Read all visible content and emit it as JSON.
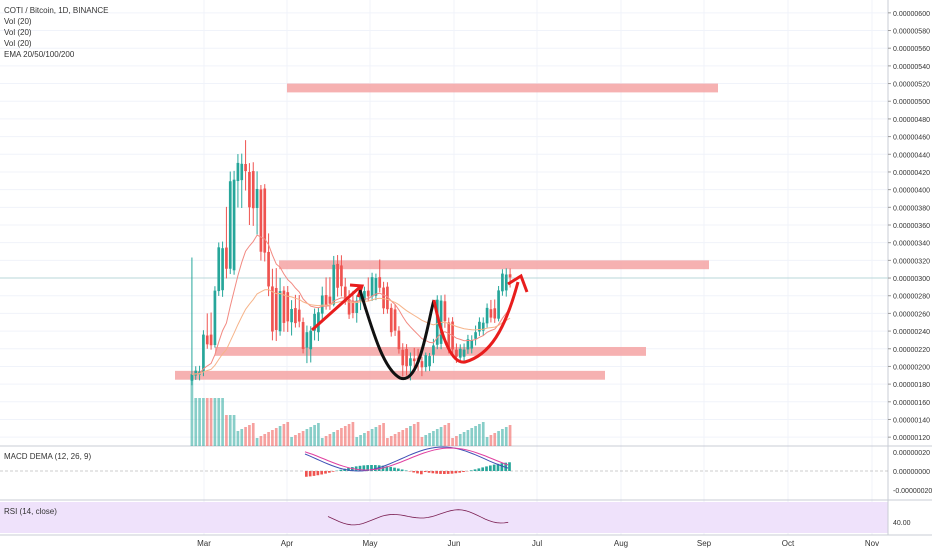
{
  "header": {
    "symbol": "COTI / Bitcoin, 1D, BINANCE",
    "indicators": [
      "Vol (20)",
      "Vol (20)",
      "Vol (20)",
      "EMA 20/50/100/200"
    ]
  },
  "macd": {
    "label": "MACD DEMA (12, 26, 9)",
    "ticks": [
      "0.00000020",
      "0.00000000",
      "-0.00000020"
    ]
  },
  "rsi": {
    "label": "RSI (14, close)",
    "ticks": [
      "40.00"
    ]
  },
  "colors": {
    "bull": "#26a69a",
    "bear": "#ef5350",
    "zone": "#f5a3a3",
    "rsi_bg": "#efe2fb",
    "macd_line": "#3f51b5",
    "signal_line": "#e040a0",
    "ema_fast": "#f28a82",
    "ema_slow": "#f6b48a",
    "ema_cyan": "#7fd3e6",
    "pattern_black": "#111111",
    "pattern_red": "#e81d1d",
    "price_line": "#b9d7da"
  },
  "chart_data": {
    "type": "candlestick",
    "title": "COTI / Bitcoin, 1D, BINANCE",
    "x_axis": {
      "ticks": [
        "Mar",
        "Apr",
        "May",
        "Jun",
        "Jul",
        "Aug",
        "Sep",
        "Oct",
        "Nov"
      ]
    },
    "y_axis": {
      "range": [
        1.1e-06,
        6.1e-06
      ],
      "ticks": [
        "0.00000600",
        "0.00000580",
        "0.00000560",
        "0.00000540",
        "0.00000520",
        "0.00000500",
        "0.00000480",
        "0.00000460",
        "0.00000440",
        "0.00000420",
        "0.00000400",
        "0.00000380",
        "0.00000360",
        "0.00000340",
        "0.00000320",
        "0.00000300",
        "0.00000280",
        "0.00000260",
        "0.00000240",
        "0.00000220",
        "0.00000200",
        "0.00000180",
        "0.00000160",
        "0.00000140",
        "0.00000120"
      ]
    },
    "current_price": 3e-06,
    "resistance_zones": [
      {
        "from": "Apr",
        "to": "Sep",
        "low": 5.1e-06,
        "high": 5.2e-06
      },
      {
        "from": "Apr",
        "to": "Sep",
        "low": 3.1e-06,
        "high": 3.2e-06
      },
      {
        "from": "Mar",
        "to": "Aug",
        "low": 2.12e-06,
        "high": 2.22e-06
      },
      {
        "from": "Feb",
        "to": "Aug",
        "low": 1.85e-06,
        "high": 1.95e-06
      }
    ],
    "candles_approx": [
      [
        1.85e-06,
        3.22e-06,
        1.8e-06,
        1.9e-06
      ],
      [
        1.9e-06,
        2e-06,
        1.85e-06,
        1.95e-06
      ],
      [
        1.95e-06,
        2.4e-06,
        1.9e-06,
        2.35e-06
      ],
      [
        2.35e-06,
        2.6e-06,
        2.2e-06,
        2.25e-06
      ],
      [
        2.25e-06,
        2.9e-06,
        2.22e-06,
        2.85e-06
      ],
      [
        2.85e-06,
        3.4e-06,
        2.8e-06,
        3.35e-06
      ],
      [
        3.35e-06,
        3.8e-06,
        3e-06,
        3.1e-06
      ],
      [
        3.1e-06,
        4.2e-06,
        3.05e-06,
        4.1e-06
      ],
      [
        4.1e-06,
        4.4e-06,
        3.8e-06,
        4.3e-06
      ],
      [
        4.3e-06,
        4.55e-06,
        4e-06,
        4.2e-06
      ],
      [
        4.2e-06,
        4.3e-06,
        3.6e-06,
        3.8e-06
      ],
      [
        3.8e-06,
        4.2e-06,
        3.5e-06,
        4e-06
      ],
      [
        4e-06,
        4.05e-06,
        3.2e-06,
        3.3e-06
      ],
      [
        3.3e-06,
        3.5e-06,
        2.8e-06,
        2.9e-06
      ],
      [
        2.9e-06,
        3.1e-06,
        2.3e-06,
        2.4e-06
      ],
      [
        2.4e-06,
        3e-06,
        2.35e-06,
        2.85e-06
      ],
      [
        2.85e-06,
        2.9e-06,
        2.4e-06,
        2.5e-06
      ],
      [
        2.5e-06,
        2.75e-06,
        2.35e-06,
        2.65e-06
      ],
      [
        2.65e-06,
        2.8e-06,
        2.45e-06,
        2.5e-06
      ],
      [
        2.5e-06,
        2.55e-06,
        2.15e-06,
        2.2e-06
      ],
      [
        2.2e-06,
        2.45e-06,
        2.05e-06,
        2.4e-06
      ],
      [
        2.4e-06,
        2.65e-06,
        2.3e-06,
        2.6e-06
      ],
      [
        2.6e-06,
        2.9e-06,
        2.5e-06,
        2.8e-06
      ],
      [
        2.8e-06,
        3e-06,
        2.65e-06,
        2.7e-06
      ],
      [
        2.7e-06,
        3.25e-06,
        2.68e-06,
        3.15e-06
      ],
      [
        3.15e-06,
        3.25e-06,
        2.8e-06,
        2.9e-06
      ],
      [
        2.9e-06,
        3e-06,
        2.7e-06,
        2.75e-06
      ],
      [
        2.75e-06,
        2.85e-06,
        2.55e-06,
        2.6e-06
      ],
      [
        2.6e-06,
        2.8e-06,
        2.5e-06,
        2.75e-06
      ],
      [
        2.75e-06,
        2.9e-06,
        2.65e-06,
        2.85e-06
      ],
      [
        2.85e-06,
        3e-06,
        2.75e-06,
        2.8e-06
      ],
      [
        2.8e-06,
        3.05e-06,
        2.75e-06,
        3e-06
      ],
      [
        3e-06,
        3.2e-06,
        2.85e-06,
        2.9e-06
      ],
      [
        2.9e-06,
        2.95e-06,
        2.6e-06,
        2.65e-06
      ],
      [
        2.65e-06,
        2.7e-06,
        2.35e-06,
        2.4e-06
      ],
      [
        2.4e-06,
        2.45e-06,
        2.15e-06,
        2.2e-06
      ],
      [
        2.2e-06,
        2.25e-06,
        1.9e-06,
        2e-06
      ],
      [
        2e-06,
        2.15e-06,
        1.85e-06,
        2.1e-06
      ],
      [
        2.1e-06,
        2.2e-06,
        1.95e-06,
        2.05e-06
      ],
      [
        2.05e-06,
        2.1e-06,
        1.9e-06,
        2e-06
      ],
      [
        2e-06,
        2.15e-06,
        1.95e-06,
        2.12e-06
      ],
      [
        2.12e-06,
        2.3e-06,
        2.05e-06,
        2.25e-06
      ],
      [
        2.25e-06,
        2.8e-06,
        2.2e-06,
        2.75e-06
      ],
      [
        2.75e-06,
        2.8e-06,
        2.45e-06,
        2.5e-06
      ],
      [
        2.5e-06,
        2.55e-06,
        2.15e-06,
        2.2e-06
      ],
      [
        2.2e-06,
        2.25e-06,
        2.05e-06,
        2.1e-06
      ],
      [
        2.1e-06,
        2.25e-06,
        2.05e-06,
        2.2e-06
      ],
      [
        2.2e-06,
        2.35e-06,
        2.15e-06,
        2.3e-06
      ],
      [
        2.3e-06,
        2.45e-06,
        2.25e-06,
        2.4e-06
      ],
      [
        2.4e-06,
        2.55e-06,
        2.35e-06,
        2.5e-06
      ],
      [
        2.5e-06,
        2.7e-06,
        2.45e-06,
        2.65e-06
      ],
      [
        2.65e-06,
        2.75e-06,
        2.5e-06,
        2.55e-06
      ],
      [
        2.55e-06,
        2.9e-06,
        2.52e-06,
        2.85e-06
      ],
      [
        2.85e-06,
        3.1e-06,
        2.8e-06,
        3.05e-06
      ],
      [
        3.05e-06,
        3.1e-06,
        2.9e-06,
        3e-06
      ]
    ]
  }
}
